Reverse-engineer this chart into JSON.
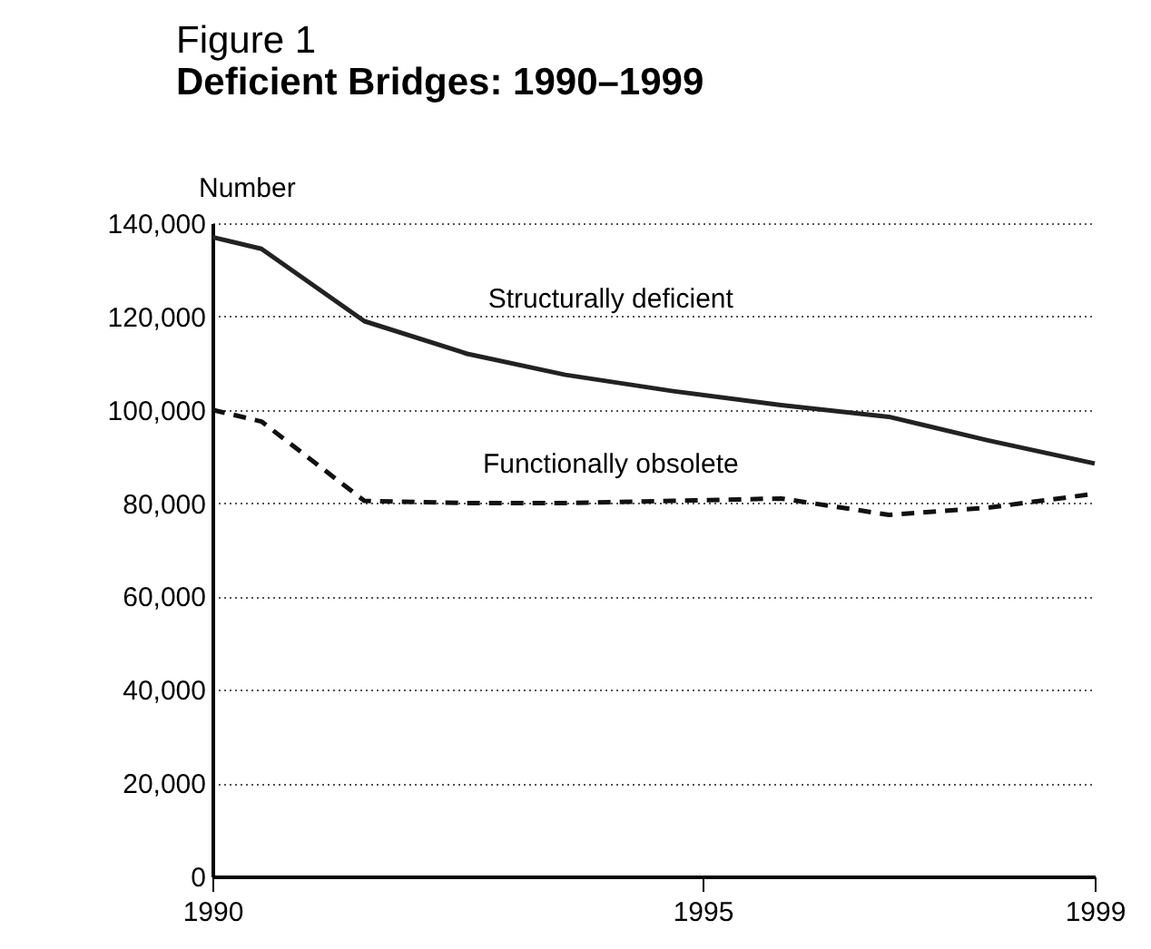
{
  "chart_data": {
    "type": "line",
    "title": "Figure 1",
    "subtitle": "Deficient Bridges: 1990–1999",
    "ylabel": "Number",
    "xlim": [
      1990,
      1999
    ],
    "xticks": [
      1990,
      1995,
      1999
    ],
    "ylim": [
      0,
      140000
    ],
    "yticks": [
      0,
      {
        "value": 20000,
        "label": "20,000"
      },
      {
        "value": 40000,
        "label": "40,000"
      },
      {
        "value": 60000,
        "label": "60,000"
      },
      {
        "value": 80000,
        "label": "80,000"
      },
      {
        "value": 100000,
        "label": "100,000"
      },
      {
        "value": 120000,
        "label": "120,000"
      },
      {
        "value": 140000,
        "label": "140,000"
      }
    ],
    "grid": "y",
    "marker": "none",
    "x": [
      1990,
      1990.5,
      1991.55,
      1992.6,
      1993.6,
      1994.7,
      1995.8,
      1996.9,
      1997.9,
      1999
    ],
    "series": [
      {
        "name": "Structurally deficient",
        "color": "#222222",
        "line_style": "solid",
        "values": [
          137000,
          134500,
          119000,
          112000,
          107500,
          104000,
          101000,
          98500,
          93500,
          88500
        ]
      },
      {
        "name": "Functionally obsolete",
        "color": "#111111",
        "line_style": "dashed",
        "values": [
          100000,
          97500,
          80500,
          80000,
          80000,
          80500,
          81000,
          77500,
          79000,
          82000
        ]
      }
    ]
  }
}
